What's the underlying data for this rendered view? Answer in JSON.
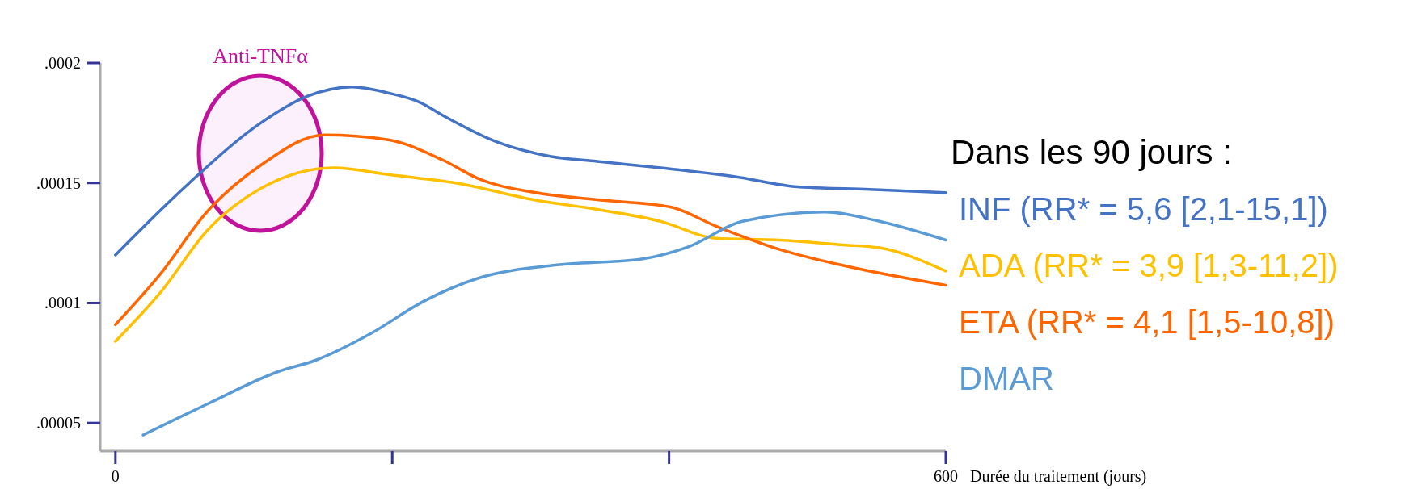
{
  "chart_data": {
    "type": "line",
    "xlabel": "Durée du traitement (jours)",
    "legend_title": "Dans les 90 jours :",
    "legend": "right",
    "grid": false,
    "marker": "none",
    "line_style": "solid",
    "xlim": [
      -11,
      600
    ],
    "xticks": [
      0,
      {
        "value": 200,
        "label": null
      },
      {
        "value": 400,
        "label": null
      },
      600
    ],
    "ylim": [
      3.83e-05,
      0.0002
    ],
    "yticks": [
      {
        "value": 5e-05,
        "label": ".00005"
      },
      {
        "value": 0.0001,
        "label": ".0001"
      },
      {
        "value": 0.00015,
        "label": ".00015"
      },
      {
        "value": 0.0002,
        "label": ".0002"
      }
    ],
    "annotations": [
      "Anti-TNFα"
    ],
    "series": [
      {
        "name": "INF (RR* = 5,6 [2,1-15,1])",
        "color": "#4472c4",
        "x": [
          0,
          52.6,
          105,
          138,
          171,
          197,
          220,
          237,
          276,
          315,
          348,
          394,
          447,
          493,
          545,
          600
        ],
        "values": [
          0.00012,
          0.0001496,
          0.000175,
          0.000186,
          0.00019,
          0.0001875,
          0.0001836,
          0.000178,
          0.000167,
          0.000161,
          0.000159,
          0.0001563,
          0.0001527,
          0.0001484,
          0.0001473,
          0.000146
        ]
      },
      {
        "name": "ADA (RR* = 3,9 [1,3-11,2])",
        "color": "#ffc000",
        "x": [
          0,
          33,
          66,
          105,
          158,
          197,
          250,
          302,
          348,
          394,
          434,
          480,
          526,
          552,
          600
        ],
        "values": [
          8.4e-05,
          0.0001047,
          0.00013,
          0.0001477,
          0.0001563,
          0.0001535,
          0.0001496,
          0.000143,
          0.000139,
          0.000134,
          0.000127,
          0.0001262,
          0.0001242,
          0.000123,
          0.0001133
        ]
      },
      {
        "name": "ETA (RR* = 4,1 [1,5-10,8])",
        "color": "#ff6600",
        "x": [
          0,
          33,
          66,
          105,
          151,
          197,
          237,
          263,
          302,
          348,
          401,
          434,
          480,
          526,
          600
        ],
        "values": [
          9.1e-05,
          0.0001125,
          0.0001379,
          0.0001574,
          0.00017,
          0.000168,
          0.0001594,
          0.0001516,
          0.0001461,
          0.000143,
          0.00014,
          0.000132,
          0.0001223,
          0.0001156,
          0.0001074
        ]
      },
      {
        "name": "DMAR",
        "color": "#5b9bd5",
        "x": [
          20,
          66,
          118,
          145,
          184,
          223,
          263,
          315,
          381,
          414,
          453,
          513,
          552,
          600
        ],
        "values": [
          4.5e-05,
          5.78e-05,
          7.15e-05,
          7.62e-05,
          8.71e-05,
          0.0001008,
          0.0001105,
          0.0001156,
          0.0001184,
          0.0001234,
          0.000134,
          0.0001379,
          0.000134,
          0.0001262
        ]
      }
    ]
  }
}
